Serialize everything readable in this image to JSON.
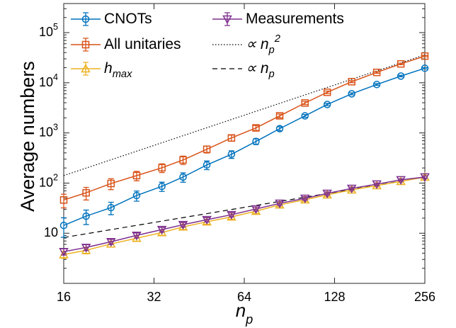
{
  "chart_data": {
    "type": "line",
    "x_label": "n",
    "x_label_sub": "p",
    "y_label": "Average numbers",
    "xlog": true,
    "ylog": true,
    "xlim": [
      16,
      256
    ],
    "ylim": [
      1,
      380000
    ],
    "xticks": [
      16,
      32,
      64,
      128,
      256
    ],
    "yticks": [
      {
        "value": 10,
        "label": "10"
      },
      {
        "value": 100,
        "label": "10",
        "exponent": "2"
      },
      {
        "value": 1000,
        "label": "10",
        "exponent": "3"
      },
      {
        "value": 10000,
        "label": "10",
        "exponent": "4"
      },
      {
        "value": 100000,
        "label": "10",
        "exponent": "5"
      }
    ],
    "x": [
      16,
      19,
      23,
      28,
      34,
      40,
      48,
      58,
      70,
      84,
      102,
      121,
      146,
      177,
      213,
      256
    ],
    "series": [
      {
        "name": "CNOTs",
        "color": "#0072bd",
        "marker": "circle",
        "values": [
          14.3,
          21.9,
          32.4,
          56.5,
          86,
          132,
          230,
          375,
          676,
          1216,
          2190,
          3690,
          6030,
          9230,
          13600,
          19500
        ],
        "errors": [
          6,
          7,
          9,
          13,
          18,
          28,
          45,
          65,
          90,
          110,
          140,
          190,
          280,
          380,
          480,
          600
        ]
      },
      {
        "name": "All unitaries",
        "color": "#d95319",
        "marker": "square",
        "values": [
          46,
          64,
          98,
          141,
          202,
          289,
          472,
          794,
          1260,
          2190,
          3950,
          6460,
          10500,
          16100,
          23800,
          34000
        ],
        "errors": [
          14,
          18,
          24,
          30,
          40,
          55,
          75,
          110,
          140,
          190,
          280,
          380,
          480,
          650,
          850,
          1000
        ]
      },
      {
        "name": "h",
        "name_sub": "max",
        "color": "#edb120",
        "marker": "triangle-up",
        "values": [
          3.75,
          4.57,
          6.12,
          7.96,
          10.3,
          13.4,
          16.9,
          21.2,
          27.5,
          36.9,
          46.4,
          58.3,
          73.3,
          89,
          108,
          132
        ],
        "errors": [
          0.6,
          0.7,
          0.8,
          1,
          1.2,
          1.5,
          1.8,
          2.2,
          2.7,
          3.2,
          3.8,
          4.4,
          5,
          5.6,
          6.2,
          7
        ]
      },
      {
        "name": "Measurements",
        "color": "#7e2f8e",
        "marker": "triangle-down",
        "values": [
          4.28,
          5.2,
          6.76,
          9.06,
          11.8,
          14.8,
          18.6,
          23.4,
          30.4,
          39.4,
          49.6,
          62.2,
          78.3,
          95.2,
          116,
          132
        ],
        "errors": [
          0.6,
          0.7,
          0.8,
          1,
          1.2,
          1.5,
          1.8,
          2.2,
          2.7,
          3.2,
          3.8,
          4.4,
          5,
          5.6,
          6.2,
          7
        ]
      }
    ],
    "reference_lines": [
      {
        "name": "∝ n",
        "name_sub": "p",
        "name_sup": "2",
        "style": "dotted",
        "color": "#000000",
        "x": [
          16,
          256
        ],
        "values": [
          141,
          36100
        ]
      },
      {
        "name": "∝ n",
        "name_sub": "p",
        "style": "dashed",
        "color": "#000000",
        "x": [
          16,
          256
        ],
        "values": [
          8.2,
          131
        ]
      }
    ]
  }
}
